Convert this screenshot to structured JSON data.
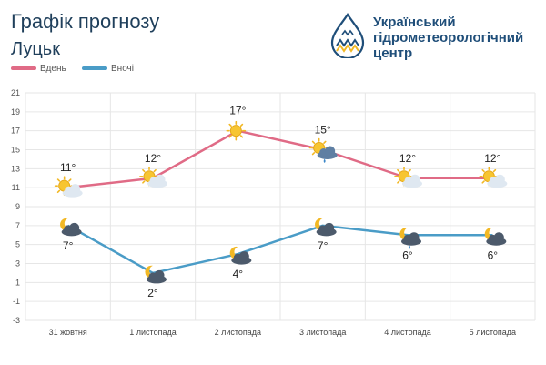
{
  "header": {
    "title": "Графік прогнозу",
    "city": "Луцьк",
    "org_name_lines": [
      "Український",
      "гідрометеорологічний",
      "центр"
    ]
  },
  "colors": {
    "day": "#e06b86",
    "night": "#4a9cc7",
    "grid": "#e6e6e6",
    "title": "#1f3f5b",
    "org": "#1f4e79"
  },
  "chart_data": {
    "type": "line",
    "title": "",
    "xlabel": "",
    "ylabel": "",
    "categories": [
      "31 жовтня",
      "1 листопада",
      "2 листопада",
      "3 листопада",
      "4 листопада",
      "5 листопада"
    ],
    "ylim": [
      -3,
      21
    ],
    "yticks": [
      -3,
      -1,
      1,
      3,
      5,
      7,
      9,
      11,
      13,
      15,
      17,
      19,
      21
    ],
    "grid": true,
    "legend_position": "top-left",
    "series": [
      {
        "name": "Вдень",
        "values": [
          11,
          12,
          17,
          15,
          12,
          12
        ],
        "labels": [
          "11°",
          "12°",
          "17°",
          "15°",
          "12°",
          "12°"
        ],
        "icons": [
          "sun-cloud-icon",
          "sun-cloud-icon",
          "sun-icon",
          "sun-cloud-rain-icon",
          "sun-cloud-icon",
          "sun-cloud-icon"
        ]
      },
      {
        "name": "Вночі",
        "values": [
          7,
          2,
          4,
          7,
          6,
          6
        ],
        "labels": [
          "7°",
          "2°",
          "4°",
          "7°",
          "6°",
          "6°"
        ],
        "icons": [
          "moon-cloud-icon",
          "moon-cloud-icon",
          "moon-cloud-icon",
          "moon-cloud-icon",
          "moon-cloud-rain-icon",
          "moon-cloud-icon"
        ]
      }
    ]
  }
}
